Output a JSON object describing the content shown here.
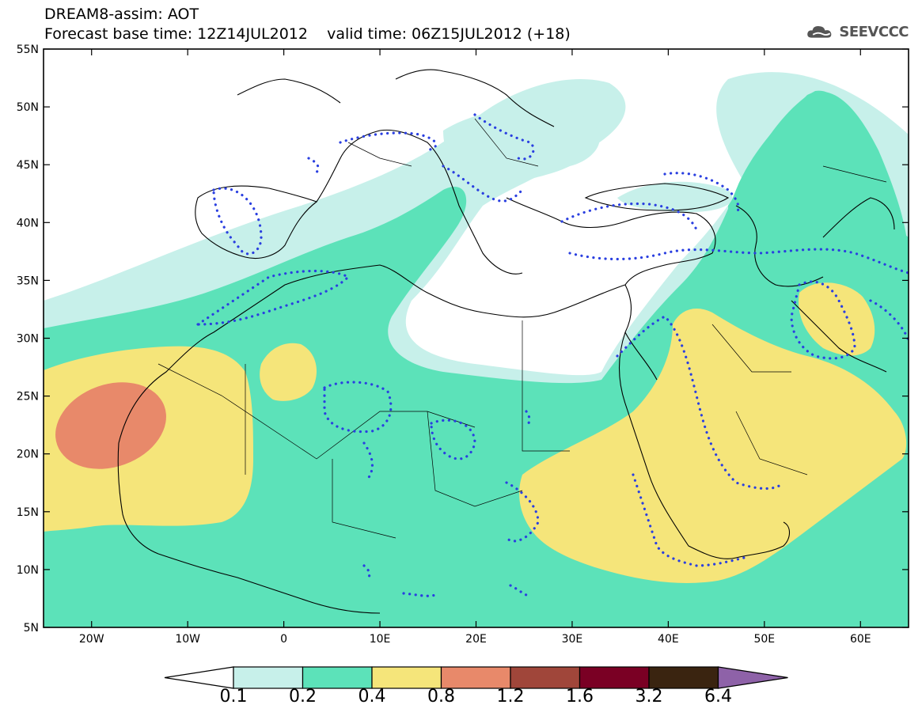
{
  "title": {
    "line1": "DREAM8-assim: AOT",
    "line2": "Forecast base time: 12Z14JUL2012    valid time: 06Z15JUL2012 (+18)"
  },
  "logo": {
    "text": "SEEVCCC",
    "icon": "cloud-icon"
  },
  "map": {
    "lon_range": [
      -25,
      65
    ],
    "lat_range": [
      5,
      55
    ],
    "lat_ticks": [
      "55N",
      "50N",
      "45N",
      "40N",
      "35N",
      "30N",
      "25N",
      "20N",
      "15N",
      "10N",
      "5N"
    ],
    "lon_ticks": [
      "20W",
      "10W",
      "0",
      "10E",
      "20E",
      "30E",
      "40E",
      "50E",
      "60E"
    ]
  },
  "colorbar": {
    "labels": [
      "0.1",
      "0.2",
      "0.4",
      "0.8",
      "1.2",
      "1.6",
      "3.2",
      "6.4"
    ],
    "colors": [
      "#ffffff",
      "#c7f0ea",
      "#5ce2b9",
      "#f5e57a",
      "#e8896a",
      "#a0463a",
      "#7a0024",
      "#3a2410",
      "#8e62a8"
    ]
  },
  "palette": {
    "c1": "#c7f0ea",
    "c2": "#5ce2b9",
    "c3": "#f5e57a",
    "c4": "#e8896a",
    "dots": "#2a3fe0"
  }
}
